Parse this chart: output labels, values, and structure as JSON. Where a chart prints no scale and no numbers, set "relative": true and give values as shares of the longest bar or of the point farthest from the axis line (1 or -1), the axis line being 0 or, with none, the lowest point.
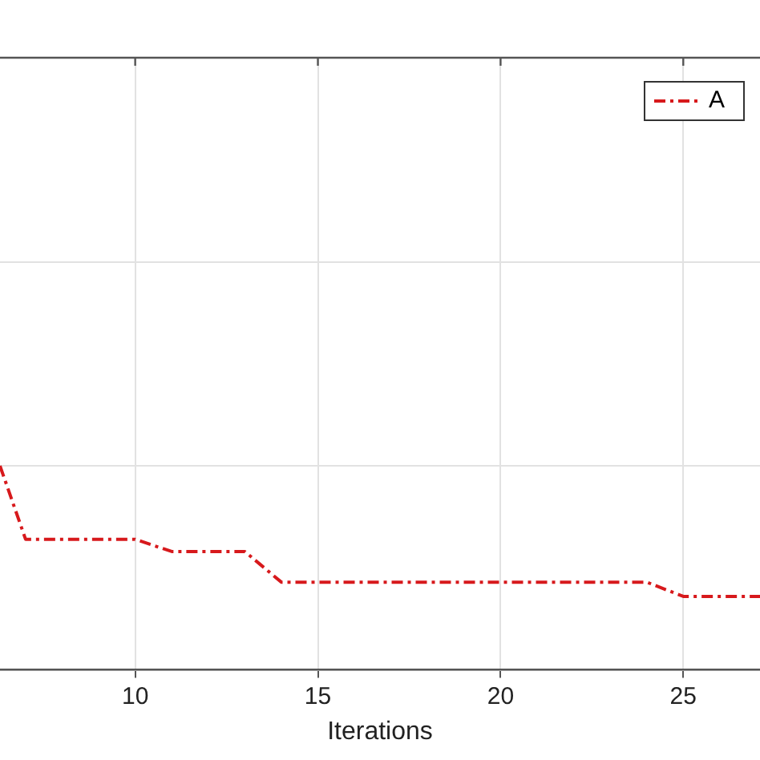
{
  "chart_data": {
    "type": "line",
    "xlabel": "Iterations",
    "relative": true,
    "xlim": [
      6.3,
      27.1
    ],
    "xticks": [
      10,
      15,
      20,
      25
    ],
    "grid": true,
    "legend": "top right",
    "marker": "none",
    "line_style": "dashed",
    "series": [
      {
        "name": "A",
        "color": "#d7191c",
        "x": [
          6.3,
          7,
          10,
          11,
          13,
          14,
          24,
          25,
          27.1
        ],
        "values": [
          1,
          0.64,
          0.64,
          0.58,
          0.58,
          0.43,
          0.43,
          0.36,
          0.36
        ]
      }
    ]
  }
}
